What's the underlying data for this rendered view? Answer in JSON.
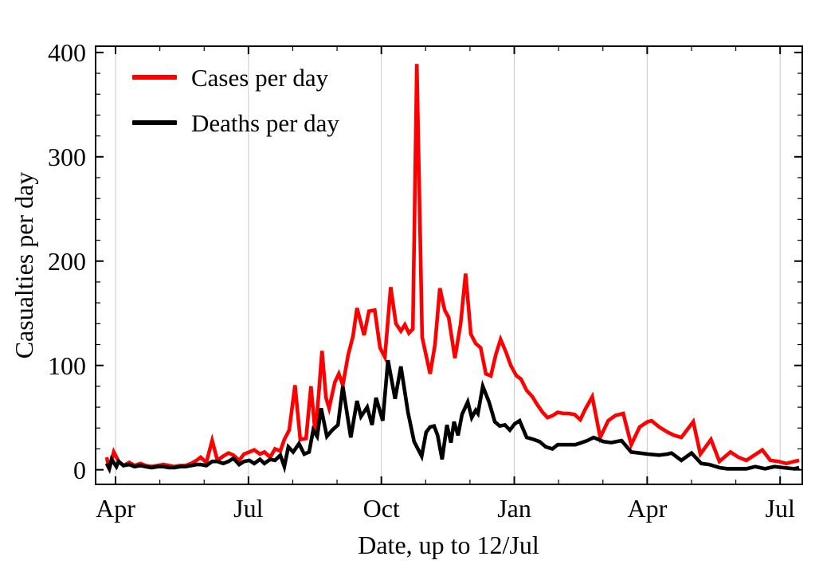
{
  "figure": {
    "background": "#ffffff",
    "text_color": "#000000",
    "frame_color": "#000000",
    "gridline_color": "#c9c9c9",
    "ylabel": "Casualties per day",
    "xlabel": "Date, up to 12/Jul",
    "legend": [
      {
        "label": "Cases per day",
        "color": "#fe0000"
      },
      {
        "label": "Deaths per day",
        "color": "#000000"
      }
    ]
  },
  "chart_data": {
    "type": "line",
    "title": "",
    "xlabel": "Date, up to 12/Jul",
    "ylabel": "Casualties per day",
    "x_unit": "months since start-April (two consecutive years, Apr → 12 Jul)",
    "x_tick_labels": [
      "Apr",
      "Jul",
      "Oct",
      "Jan",
      "Apr",
      "Jul"
    ],
    "x_tick_months": [
      0,
      3,
      6,
      9,
      12,
      15
    ],
    "x_minor_tick_step_months": 1,
    "y_tick_labels": [
      "0",
      "100",
      "200",
      "300",
      "400"
    ],
    "y_ticks": [
      0,
      100,
      200,
      300,
      400
    ],
    "y_minor_tick_step": 20,
    "xlim": [
      -0.45,
      15.5
    ],
    "ylim": [
      -14,
      406
    ],
    "grid": "vertical gridlines at labeled quarter ticks",
    "legend_position": "top-left inside plot",
    "series": [
      {
        "name": "Cases per day",
        "color": "#fe0000",
        "points": [
          [
            -0.2,
            12
          ],
          [
            -0.14,
            1
          ],
          [
            -0.04,
            17
          ],
          [
            0.07,
            8
          ],
          [
            0.18,
            4
          ],
          [
            0.31,
            7
          ],
          [
            0.43,
            4
          ],
          [
            0.56,
            6
          ],
          [
            0.68,
            4
          ],
          [
            0.81,
            3
          ],
          [
            0.95,
            4
          ],
          [
            1.08,
            5
          ],
          [
            1.21,
            4
          ],
          [
            1.33,
            3
          ],
          [
            1.46,
            4
          ],
          [
            1.58,
            4
          ],
          [
            1.71,
            6
          ],
          [
            1.83,
            9
          ],
          [
            1.92,
            12
          ],
          [
            2.05,
            7
          ],
          [
            2.18,
            28
          ],
          [
            2.3,
            9
          ],
          [
            2.43,
            13
          ],
          [
            2.55,
            16
          ],
          [
            2.66,
            14
          ],
          [
            2.79,
            9
          ],
          [
            2.9,
            15
          ],
          [
            3.02,
            17
          ],
          [
            3.13,
            19
          ],
          [
            3.26,
            15
          ],
          [
            3.36,
            17
          ],
          [
            3.49,
            12
          ],
          [
            3.6,
            20
          ],
          [
            3.72,
            18
          ],
          [
            3.81,
            29
          ],
          [
            3.92,
            38
          ],
          [
            4.05,
            81
          ],
          [
            4.17,
            29
          ],
          [
            4.3,
            30
          ],
          [
            4.41,
            80
          ],
          [
            4.51,
            34
          ],
          [
            4.59,
            75
          ],
          [
            4.66,
            114
          ],
          [
            4.75,
            69
          ],
          [
            4.82,
            59
          ],
          [
            4.95,
            84
          ],
          [
            5.04,
            92
          ],
          [
            5.13,
            81
          ],
          [
            5.25,
            110
          ],
          [
            5.36,
            128
          ],
          [
            5.45,
            155
          ],
          [
            5.61,
            129
          ],
          [
            5.72,
            152
          ],
          [
            5.85,
            153
          ],
          [
            5.97,
            117
          ],
          [
            6.08,
            108
          ],
          [
            6.21,
            175
          ],
          [
            6.33,
            140
          ],
          [
            6.44,
            133
          ],
          [
            6.53,
            139
          ],
          [
            6.62,
            131
          ],
          [
            6.71,
            135
          ],
          [
            6.8,
            389
          ],
          [
            6.92,
            127
          ],
          [
            7.1,
            92
          ],
          [
            7.21,
            120
          ],
          [
            7.32,
            174
          ],
          [
            7.43,
            153
          ],
          [
            7.52,
            146
          ],
          [
            7.66,
            107
          ],
          [
            7.79,
            140
          ],
          [
            7.9,
            188
          ],
          [
            8.02,
            130
          ],
          [
            8.13,
            121
          ],
          [
            8.24,
            117
          ],
          [
            8.36,
            92
          ],
          [
            8.47,
            90
          ],
          [
            8.58,
            110
          ],
          [
            8.69,
            125
          ],
          [
            8.81,
            113
          ],
          [
            8.92,
            100
          ],
          [
            9.05,
            90
          ],
          [
            9.15,
            87
          ],
          [
            9.28,
            76
          ],
          [
            9.41,
            70
          ],
          [
            9.51,
            63
          ],
          [
            9.64,
            55
          ],
          [
            9.75,
            50
          ],
          [
            9.87,
            52
          ],
          [
            9.98,
            55
          ],
          [
            10.11,
            54
          ],
          [
            10.23,
            54
          ],
          [
            10.36,
            53
          ],
          [
            10.49,
            48
          ],
          [
            10.59,
            57
          ],
          [
            10.76,
            70
          ],
          [
            10.94,
            31
          ],
          [
            11.12,
            47
          ],
          [
            11.28,
            52
          ],
          [
            11.46,
            54
          ],
          [
            11.64,
            24
          ],
          [
            11.83,
            41
          ],
          [
            12.01,
            46
          ],
          [
            12.1,
            47
          ],
          [
            12.27,
            41
          ],
          [
            12.46,
            36
          ],
          [
            12.61,
            33
          ],
          [
            12.77,
            31
          ],
          [
            13.04,
            46
          ],
          [
            13.2,
            15
          ],
          [
            13.44,
            29
          ],
          [
            13.63,
            8
          ],
          [
            13.88,
            17
          ],
          [
            14.06,
            12
          ],
          [
            14.24,
            9
          ],
          [
            14.42,
            14
          ],
          [
            14.6,
            19
          ],
          [
            14.78,
            9
          ],
          [
            14.96,
            8
          ],
          [
            15.14,
            6
          ],
          [
            15.32,
            8
          ],
          [
            15.43,
            9
          ]
        ]
      },
      {
        "name": "Deaths per day",
        "color": "#000000",
        "points": [
          [
            -0.2,
            6
          ],
          [
            -0.14,
            1
          ],
          [
            -0.09,
            10
          ],
          [
            0.02,
            3
          ],
          [
            0.07,
            8
          ],
          [
            0.18,
            4
          ],
          [
            0.31,
            5
          ],
          [
            0.43,
            3
          ],
          [
            0.56,
            4
          ],
          [
            0.68,
            3
          ],
          [
            0.81,
            2
          ],
          [
            0.95,
            3
          ],
          [
            1.08,
            3
          ],
          [
            1.21,
            2
          ],
          [
            1.33,
            2
          ],
          [
            1.46,
            3
          ],
          [
            1.58,
            3
          ],
          [
            1.71,
            4
          ],
          [
            1.83,
            5
          ],
          [
            1.92,
            5
          ],
          [
            2.05,
            4
          ],
          [
            2.18,
            8
          ],
          [
            2.3,
            8
          ],
          [
            2.43,
            6
          ],
          [
            2.55,
            8
          ],
          [
            2.66,
            11
          ],
          [
            2.79,
            5
          ],
          [
            2.9,
            8
          ],
          [
            3.02,
            9
          ],
          [
            3.13,
            6
          ],
          [
            3.26,
            10
          ],
          [
            3.36,
            6
          ],
          [
            3.49,
            10
          ],
          [
            3.6,
            9
          ],
          [
            3.72,
            14
          ],
          [
            3.81,
            3
          ],
          [
            3.9,
            22
          ],
          [
            4.01,
            17
          ],
          [
            4.14,
            25
          ],
          [
            4.26,
            15
          ],
          [
            4.37,
            17
          ],
          [
            4.46,
            38
          ],
          [
            4.55,
            32
          ],
          [
            4.64,
            59
          ],
          [
            4.77,
            32
          ],
          [
            4.89,
            38
          ],
          [
            5.02,
            43
          ],
          [
            5.13,
            80
          ],
          [
            5.31,
            31
          ],
          [
            5.45,
            66
          ],
          [
            5.54,
            51
          ],
          [
            5.68,
            60
          ],
          [
            5.79,
            43
          ],
          [
            5.88,
            69
          ],
          [
            6.03,
            47
          ],
          [
            6.15,
            105
          ],
          [
            6.31,
            68
          ],
          [
            6.44,
            99
          ],
          [
            6.6,
            55
          ],
          [
            6.74,
            27
          ],
          [
            6.91,
            13
          ],
          [
            7.01,
            36
          ],
          [
            7.1,
            41
          ],
          [
            7.19,
            42
          ],
          [
            7.27,
            33
          ],
          [
            7.37,
            10
          ],
          [
            7.48,
            43
          ],
          [
            7.57,
            26
          ],
          [
            7.64,
            46
          ],
          [
            7.73,
            33
          ],
          [
            7.82,
            53
          ],
          [
            7.95,
            65
          ],
          [
            8.04,
            50
          ],
          [
            8.13,
            57
          ],
          [
            8.18,
            54
          ],
          [
            8.29,
            80
          ],
          [
            8.43,
            65
          ],
          [
            8.56,
            46
          ],
          [
            8.67,
            42
          ],
          [
            8.79,
            43
          ],
          [
            8.9,
            38
          ],
          [
            9.01,
            44
          ],
          [
            9.12,
            47
          ],
          [
            9.28,
            31
          ],
          [
            9.44,
            29
          ],
          [
            9.57,
            27
          ],
          [
            9.71,
            22
          ],
          [
            9.86,
            20
          ],
          [
            9.98,
            24
          ],
          [
            10.13,
            24
          ],
          [
            10.25,
            24
          ],
          [
            10.38,
            24
          ],
          [
            10.52,
            26
          ],
          [
            10.65,
            28
          ],
          [
            10.79,
            31
          ],
          [
            11.01,
            27
          ],
          [
            11.19,
            26
          ],
          [
            11.42,
            28
          ],
          [
            11.64,
            17
          ],
          [
            11.83,
            16
          ],
          [
            12.01,
            15
          ],
          [
            12.27,
            14
          ],
          [
            12.46,
            15
          ],
          [
            12.55,
            16
          ],
          [
            12.77,
            9
          ],
          [
            13.0,
            16
          ],
          [
            13.22,
            6
          ],
          [
            13.4,
            5
          ],
          [
            13.63,
            2
          ],
          [
            13.81,
            1
          ],
          [
            14.03,
            1
          ],
          [
            14.24,
            1
          ],
          [
            14.44,
            3
          ],
          [
            14.66,
            1
          ],
          [
            14.87,
            3
          ],
          [
            15.07,
            2
          ],
          [
            15.32,
            1
          ],
          [
            15.43,
            2
          ]
        ]
      }
    ]
  }
}
